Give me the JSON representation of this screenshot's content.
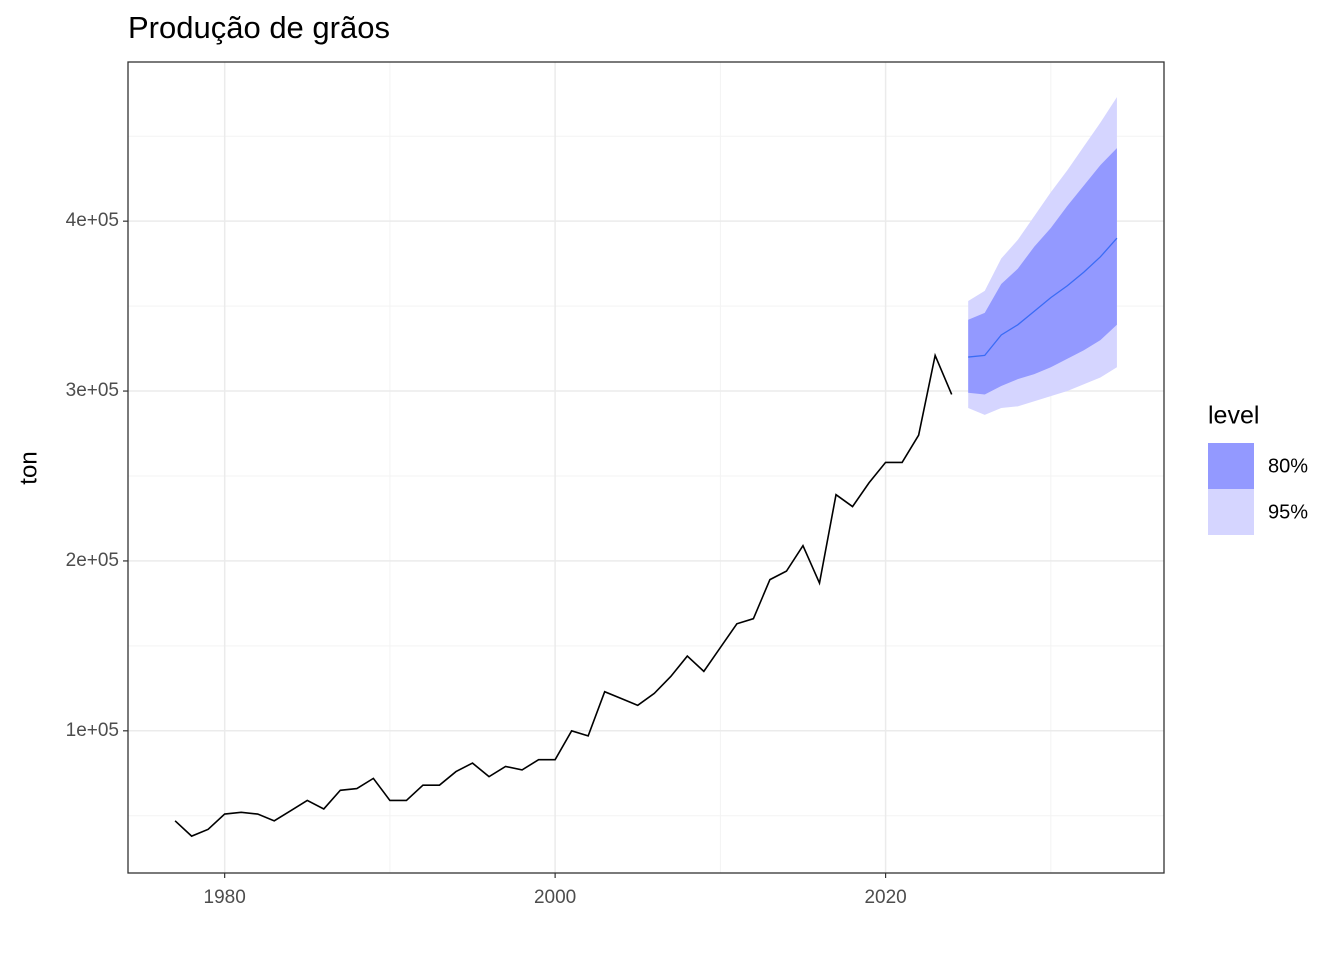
{
  "chart_data": {
    "type": "forecast",
    "title": "Produção de grãos",
    "y_label": "ton",
    "legend_title": "level",
    "xlim": [
      1974.15,
      2036.85
    ],
    "ylim": [
      16300,
      493700
    ],
    "xticks": [
      1980,
      2000,
      2020
    ],
    "x_minor_ticks": [
      1990,
      2010,
      2030
    ],
    "yticks": [
      {
        "value": 100000,
        "label": "1e+05"
      },
      {
        "value": 200000,
        "label": "2e+05"
      },
      {
        "value": 300000,
        "label": "3e+05"
      },
      {
        "value": 400000,
        "label": "4e+05"
      }
    ],
    "y_minor_ticks": [
      50000,
      150000,
      250000,
      350000,
      450000
    ],
    "grid": true,
    "series": [
      {
        "color": "#000000",
        "x": [
          1977,
          1978,
          1979,
          1980,
          1981,
          1982,
          1983,
          1984,
          1985,
          1986,
          1987,
          1988,
          1989,
          1990,
          1991,
          1992,
          1993,
          1994,
          1995,
          1996,
          1997,
          1998,
          1999,
          2000,
          2001,
          2002,
          2003,
          2004,
          2005,
          2006,
          2007,
          2008,
          2009,
          2010,
          2011,
          2012,
          2013,
          2014,
          2015,
          2016,
          2017,
          2018,
          2019,
          2020,
          2021,
          2022,
          2023,
          2024
        ],
        "values": [
          47000,
          38000,
          42000,
          51000,
          52000,
          51000,
          47000,
          53000,
          59000,
          54000,
          65000,
          66000,
          72000,
          59000,
          59000,
          68000,
          68000,
          76000,
          81000,
          73000,
          79000,
          77000,
          83000,
          83000,
          100000,
          97000,
          123000,
          119000,
          115000,
          122000,
          132000,
          144000,
          135000,
          149000,
          163000,
          166000,
          189000,
          194000,
          209000,
          187000,
          239000,
          232000,
          246000,
          258000,
          258000,
          274000,
          321000,
          298000
        ]
      },
      {
        "color": "#3b6cf5",
        "x": [
          2025,
          2026,
          2027,
          2028,
          2029,
          2030,
          2031,
          2032,
          2033,
          2034
        ],
        "values": [
          320000,
          321000,
          333000,
          339000,
          347000,
          355000,
          362000,
          370000,
          379000,
          390000
        ]
      }
    ],
    "bands": [
      {
        "name": "80%",
        "color": "#9399ff",
        "x": [
          2025,
          2026,
          2027,
          2028,
          2029,
          2030,
          2031,
          2032,
          2033,
          2034
        ],
        "lower": [
          299000,
          298000,
          303000,
          307000,
          310000,
          314000,
          319000,
          324000,
          330000,
          339000
        ],
        "upper": [
          342000,
          346000,
          363000,
          372000,
          385000,
          396000,
          409000,
          421000,
          433000,
          443000
        ]
      },
      {
        "name": "95%",
        "color": "#d5d5ff",
        "x": [
          2025,
          2026,
          2027,
          2028,
          2029,
          2030,
          2031,
          2032,
          2033,
          2034
        ],
        "lower": [
          290000,
          286000,
          290000,
          291000,
          294000,
          297000,
          300000,
          304000,
          308000,
          314000
        ],
        "upper": [
          353000,
          359000,
          378000,
          389000,
          403000,
          417000,
          430000,
          444000,
          458000,
          473000
        ]
      }
    ]
  }
}
